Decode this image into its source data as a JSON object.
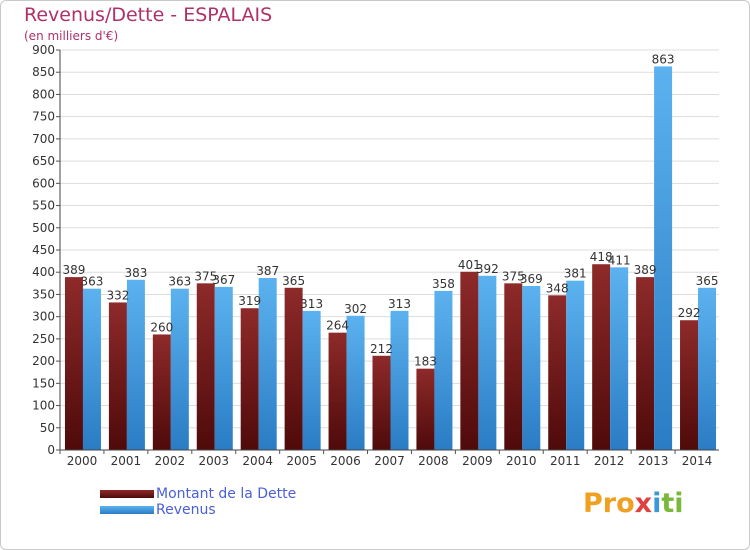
{
  "chart_data": {
    "type": "bar",
    "title": "Revenus/Dette - ESPALAIS",
    "subtitle": "(en milliers d'€)",
    "categories": [
      "2000",
      "2001",
      "2002",
      "2003",
      "2004",
      "2005",
      "2006",
      "2007",
      "2008",
      "2009",
      "2010",
      "2011",
      "2012",
      "2013",
      "2014"
    ],
    "series": [
      {
        "name": "Montant de la Dette",
        "color": "#7a1f1f",
        "values": [
          389,
          332,
          260,
          375,
          319,
          365,
          264,
          212,
          183,
          401,
          375,
          348,
          418,
          389,
          292
        ]
      },
      {
        "name": "Revenus",
        "color": "#3d9be0",
        "values": [
          363,
          383,
          363,
          367,
          387,
          313,
          302,
          313,
          358,
          392,
          369,
          381,
          411,
          863,
          365
        ]
      }
    ],
    "ylim": [
      0,
      900
    ],
    "yticks": [
      0,
      50,
      100,
      150,
      200,
      250,
      300,
      350,
      400,
      450,
      500,
      550,
      600,
      650,
      700,
      750,
      800,
      850,
      900
    ],
    "grid": true,
    "legend": "bottom-left"
  },
  "logo": {
    "parts": [
      "Pro",
      "x",
      "i",
      "ti"
    ]
  }
}
